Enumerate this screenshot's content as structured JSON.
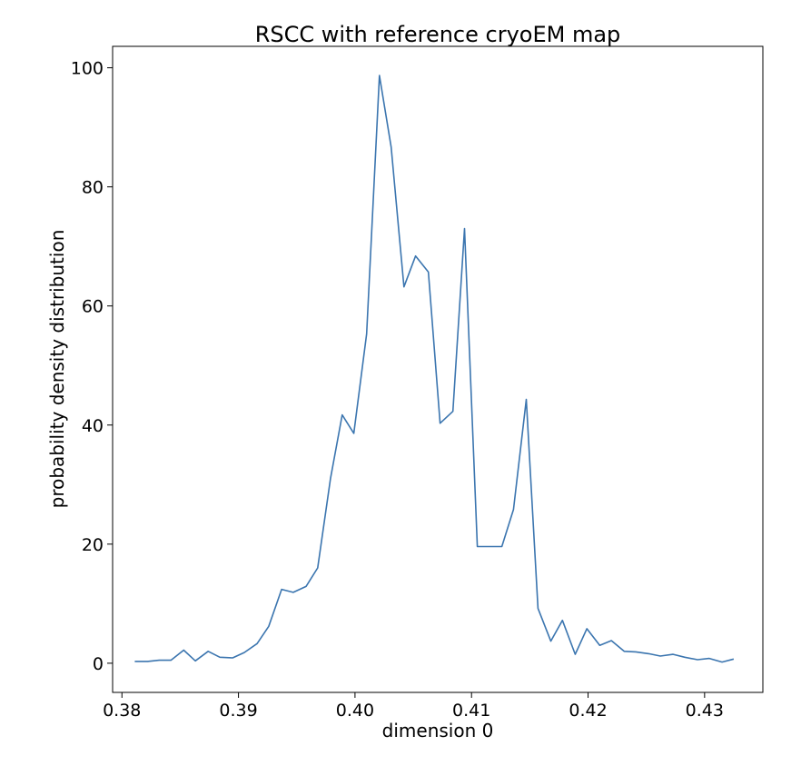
{
  "chart_data": {
    "type": "line",
    "title": "RSCC with reference cryoEM map",
    "xlabel": "dimension 0",
    "ylabel": "probability density distribution",
    "xlim": [
      0.3792,
      0.435
    ],
    "ylim": [
      -4.9,
      103.6
    ],
    "xticks": [
      0.38,
      0.39,
      0.4,
      0.41,
      0.42,
      0.43
    ],
    "xtick_labels": [
      "0.38",
      "0.39",
      "0.40",
      "0.41",
      "0.42",
      "0.43"
    ],
    "yticks": [
      0,
      20,
      40,
      60,
      80,
      100
    ],
    "ytick_labels": [
      "0",
      "20",
      "40",
      "60",
      "80",
      "100"
    ],
    "grid": false,
    "legend": "none",
    "series": [
      {
        "color": "#3b75af",
        "x": [
          0.3811,
          0.3822,
          0.3832,
          0.3842,
          0.3853,
          0.3863,
          0.3874,
          0.3884,
          0.3895,
          0.3905,
          0.3916,
          0.3926,
          0.3937,
          0.3947,
          0.3958,
          0.3968,
          0.3979,
          0.3989,
          0.3999,
          0.401,
          0.4021,
          0.4031,
          0.4042,
          0.4052,
          0.4063,
          0.4073,
          0.4084,
          0.4094,
          0.4105,
          0.4115,
          0.4126,
          0.4136,
          0.4147,
          0.4157,
          0.4168,
          0.4178,
          0.4189,
          0.4199,
          0.421,
          0.422,
          0.4231,
          0.4241,
          0.4252,
          0.4262,
          0.4273,
          0.4283,
          0.4294,
          0.4304,
          0.4315,
          0.4325
        ],
        "y": [
          0.3,
          0.3,
          0.5,
          0.5,
          2.2,
          0.4,
          2.0,
          1.0,
          0.9,
          1.8,
          3.3,
          6.2,
          12.4,
          11.9,
          12.9,
          16.0,
          31.0,
          41.7,
          38.6,
          55.3,
          98.7,
          86.7,
          63.2,
          68.4,
          65.7,
          40.3,
          42.3,
          73.0,
          19.6,
          19.6,
          19.6,
          25.8,
          44.3,
          9.2,
          3.7,
          7.2,
          1.5,
          5.8,
          3.0,
          3.8,
          2.0,
          1.9,
          1.6,
          1.2,
          1.5,
          1.0,
          0.6,
          0.8,
          0.2,
          0.7
        ]
      }
    ]
  }
}
